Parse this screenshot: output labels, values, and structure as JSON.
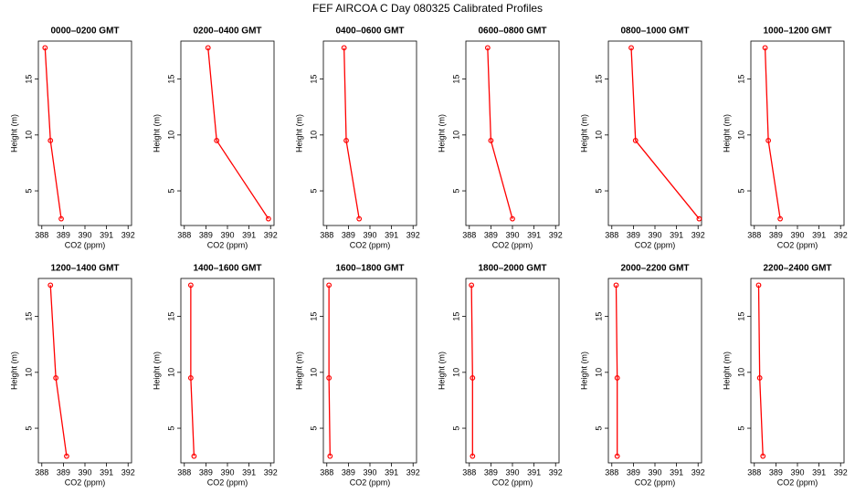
{
  "title": "FEF AIRCOA C  Day 080325  Calibrated Profiles",
  "chart_data": [
    {
      "type": "line",
      "title": "0000–0200 GMT",
      "xlabel": "CO2 (ppm)",
      "ylabel": "Height (m)",
      "x": [
        388.15,
        388.4,
        388.9
      ],
      "values": [
        17.8,
        9.5,
        2.5
      ],
      "color": "#ff0000",
      "xlim": [
        387.84,
        392.16
      ],
      "ylim": [
        1.9,
        18.4
      ],
      "xticks": [
        388,
        389,
        390,
        391,
        392
      ],
      "yticks": [
        5,
        10,
        15
      ]
    },
    {
      "type": "line",
      "title": "0200–0400 GMT",
      "xlabel": "CO2 (ppm)",
      "ylabel": "Height (m)",
      "x": [
        389.1,
        389.5,
        391.9
      ],
      "values": [
        17.8,
        9.5,
        2.5
      ],
      "color": "#ff0000",
      "xlim": [
        387.84,
        392.16
      ],
      "ylim": [
        1.9,
        18.4
      ],
      "xticks": [
        388,
        389,
        390,
        391,
        392
      ],
      "yticks": [
        5,
        10,
        15
      ]
    },
    {
      "type": "line",
      "title": "0400–0600 GMT",
      "xlabel": "CO2 (ppm)",
      "ylabel": "Height (m)",
      "x": [
        388.8,
        388.9,
        389.5
      ],
      "values": [
        17.8,
        9.5,
        2.5
      ],
      "color": "#ff0000",
      "xlim": [
        387.84,
        392.16
      ],
      "ylim": [
        1.9,
        18.4
      ],
      "xticks": [
        388,
        389,
        390,
        391,
        392
      ],
      "yticks": [
        5,
        10,
        15
      ]
    },
    {
      "type": "line",
      "title": "0600–0800 GMT",
      "xlabel": "CO2 (ppm)",
      "ylabel": "Height (m)",
      "x": [
        388.85,
        389.0,
        390.0
      ],
      "values": [
        17.8,
        9.5,
        2.5
      ],
      "color": "#ff0000",
      "xlim": [
        387.84,
        392.16
      ],
      "ylim": [
        1.9,
        18.4
      ],
      "xticks": [
        388,
        389,
        390,
        391,
        392
      ],
      "yticks": [
        5,
        10,
        15
      ]
    },
    {
      "type": "line",
      "title": "0800–1000 GMT",
      "xlabel": "CO2 (ppm)",
      "ylabel": "Height (m)",
      "x": [
        388.9,
        389.1,
        392.05
      ],
      "values": [
        17.8,
        9.5,
        2.5
      ],
      "color": "#ff0000",
      "xlim": [
        387.84,
        392.16
      ],
      "ylim": [
        1.9,
        18.4
      ],
      "xticks": [
        388,
        389,
        390,
        391,
        392
      ],
      "yticks": [
        5,
        10,
        15
      ]
    },
    {
      "type": "line",
      "title": "1000–1200 GMT",
      "xlabel": "CO2 (ppm)",
      "ylabel": "Height (m)",
      "x": [
        388.5,
        388.65,
        389.2
      ],
      "values": [
        17.8,
        9.5,
        2.5
      ],
      "color": "#ff0000",
      "xlim": [
        387.84,
        392.16
      ],
      "ylim": [
        1.9,
        18.4
      ],
      "xticks": [
        388,
        389,
        390,
        391,
        392
      ],
      "yticks": [
        5,
        10,
        15
      ]
    },
    {
      "type": "line",
      "title": "1200–1400 GMT",
      "xlabel": "CO2 (ppm)",
      "ylabel": "Height (m)",
      "x": [
        388.4,
        388.65,
        389.15
      ],
      "values": [
        17.8,
        9.5,
        2.5
      ],
      "color": "#ff0000",
      "xlim": [
        387.84,
        392.16
      ],
      "ylim": [
        1.9,
        18.4
      ],
      "xticks": [
        388,
        389,
        390,
        391,
        392
      ],
      "yticks": [
        5,
        10,
        15
      ]
    },
    {
      "type": "line",
      "title": "1400–1600 GMT",
      "xlabel": "CO2 (ppm)",
      "ylabel": "Height (m)",
      "x": [
        388.3,
        388.3,
        388.45
      ],
      "values": [
        17.8,
        9.5,
        2.5
      ],
      "color": "#ff0000",
      "xlim": [
        387.84,
        392.16
      ],
      "ylim": [
        1.9,
        18.4
      ],
      "xticks": [
        388,
        389,
        390,
        391,
        392
      ],
      "yticks": [
        5,
        10,
        15
      ]
    },
    {
      "type": "line",
      "title": "1600–1800 GMT",
      "xlabel": "CO2 (ppm)",
      "ylabel": "Height (m)",
      "x": [
        388.1,
        388.1,
        388.15
      ],
      "values": [
        17.8,
        9.5,
        2.5
      ],
      "color": "#ff0000",
      "xlim": [
        387.84,
        392.16
      ],
      "ylim": [
        1.9,
        18.4
      ],
      "xticks": [
        388,
        389,
        390,
        391,
        392
      ],
      "yticks": [
        5,
        10,
        15
      ]
    },
    {
      "type": "line",
      "title": "1800–2000 GMT",
      "xlabel": "CO2 (ppm)",
      "ylabel": "Height (m)",
      "x": [
        388.1,
        388.15,
        388.15
      ],
      "values": [
        17.8,
        9.5,
        2.5
      ],
      "color": "#ff0000",
      "xlim": [
        387.84,
        392.16
      ],
      "ylim": [
        1.9,
        18.4
      ],
      "xticks": [
        388,
        389,
        390,
        391,
        392
      ],
      "yticks": [
        5,
        10,
        15
      ]
    },
    {
      "type": "line",
      "title": "2000–2200 GMT",
      "xlabel": "CO2 (ppm)",
      "ylabel": "Height (m)",
      "x": [
        388.2,
        388.25,
        388.25
      ],
      "values": [
        17.8,
        9.5,
        2.5
      ],
      "color": "#ff0000",
      "xlim": [
        387.84,
        392.16
      ],
      "ylim": [
        1.9,
        18.4
      ],
      "xticks": [
        388,
        389,
        390,
        391,
        392
      ],
      "yticks": [
        5,
        10,
        15
      ]
    },
    {
      "type": "line",
      "title": "2200–2400 GMT",
      "xlabel": "CO2 (ppm)",
      "ylabel": "Height (m)",
      "x": [
        388.2,
        388.25,
        388.4
      ],
      "values": [
        17.8,
        9.5,
        2.5
      ],
      "color": "#ff0000",
      "xlim": [
        387.84,
        392.16
      ],
      "ylim": [
        1.9,
        18.4
      ],
      "xticks": [
        388,
        389,
        390,
        391,
        392
      ],
      "yticks": [
        5,
        10,
        15
      ]
    }
  ]
}
